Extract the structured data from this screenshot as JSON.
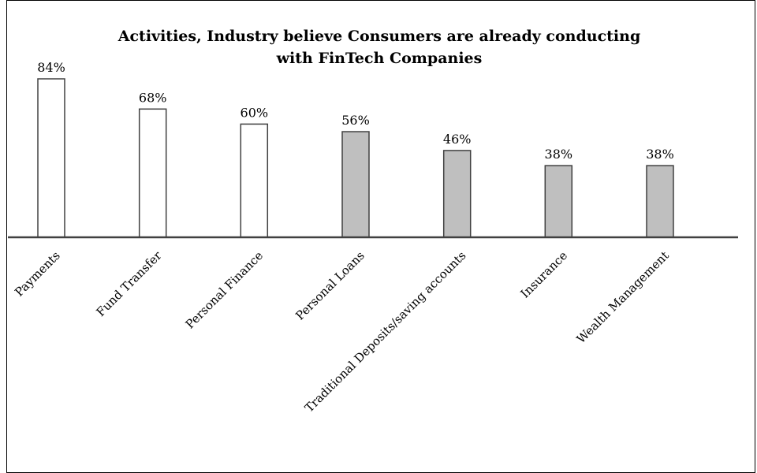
{
  "chart_data": {
    "type": "bar",
    "title_lines": [
      "Activities, Industry believe Consumers are already conducting",
      "with FinTech Companies"
    ],
    "xlabel": "",
    "ylabel": "",
    "ylim": [
      0,
      84
    ],
    "grid": false,
    "legend": "none",
    "categories": [
      "Payments",
      "Fund Transfer",
      "Personal Finance",
      "Personal Loans",
      "Traditional Deposits/saving accounts",
      "Insurance",
      "Wealth Management"
    ],
    "values": [
      84,
      68,
      60,
      56,
      46,
      38,
      38
    ],
    "value_labels": [
      "84%",
      "68%",
      "60%",
      "56%",
      "46%",
      "38%",
      "38%"
    ],
    "bar_fills": [
      "#ffffff",
      "#ffffff",
      "#ffffff",
      "#bfbfbf",
      "#bfbfbf",
      "#bfbfbf",
      "#bfbfbf"
    ],
    "bar_stroke": "#404040",
    "axis_color": "#404040"
  }
}
